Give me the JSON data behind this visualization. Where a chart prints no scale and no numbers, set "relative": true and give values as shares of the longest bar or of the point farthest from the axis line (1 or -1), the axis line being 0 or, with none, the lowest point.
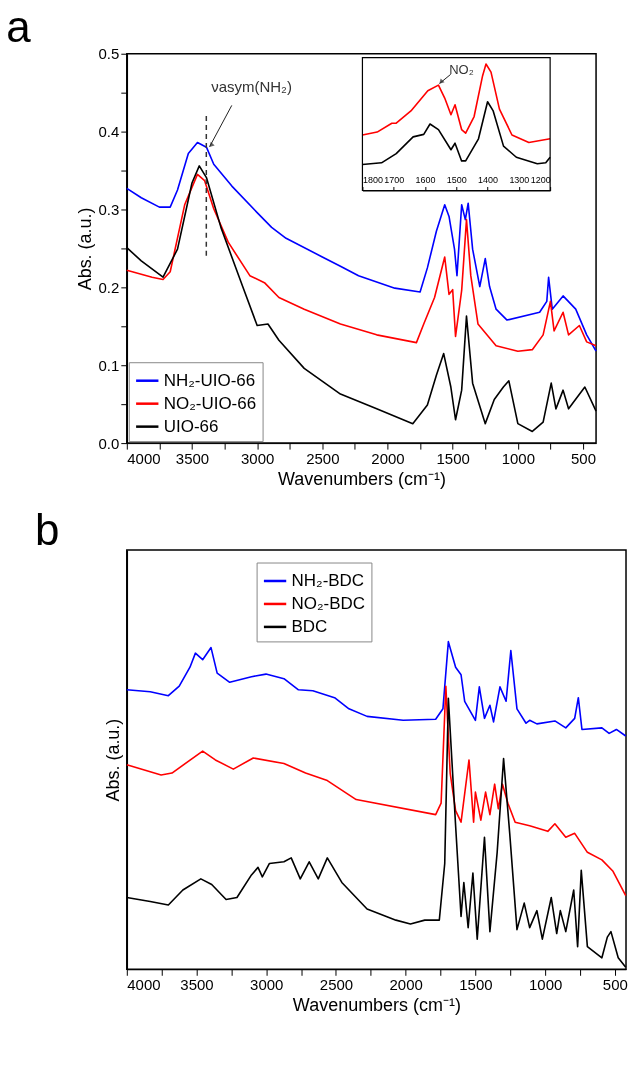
{
  "chart_data": [
    {
      "type": "line",
      "title": "a",
      "xlabel": "Wavenumbers (cm⁻¹)",
      "ylabel": "Abs. (a.u.)",
      "xlim": [
        4000,
        400
      ],
      "ylim": [
        0,
        0.5
      ],
      "xticks": [
        4000,
        {
          "value": 3750,
          "label": null
        },
        3500,
        {
          "value": 3250,
          "label": null
        },
        3000,
        {
          "value": 2750,
          "label": null
        },
        2500,
        {
          "value": 2250,
          "label": null
        },
        2000,
        {
          "value": 1750,
          "label": null
        },
        1500,
        {
          "value": 1250,
          "label": null
        },
        1000,
        {
          "value": 750,
          "label": null
        },
        500
      ],
      "yticks": [
        {
          "value": 0,
          "label": "0.0"
        },
        {
          "value": 0.05,
          "label": null
        },
        0.1,
        {
          "value": 0.15,
          "label": null
        },
        0.2,
        {
          "value": 0.25,
          "label": null
        },
        0.3,
        {
          "value": 0.35,
          "label": null
        },
        0.4,
        {
          "value": 0.45,
          "label": null
        },
        0.5
      ],
      "grid": false,
      "legend": "bottom left",
      "ref_lines": [
        {
          "axis": "x",
          "value": 3390,
          "line_style": "dashed",
          "color": "#333333"
        }
      ],
      "annotations": [
        {
          "text": "νasym(NH₂)",
          "x": 3380,
          "y": 0.378
        }
      ],
      "series": [
        {
          "name": "NH₂-UIO-66",
          "color": "#0000ff",
          "x": [
            4000,
            3889,
            3750,
            3667,
            3611,
            3528,
            3458,
            3389,
            3333,
            3194,
            3000,
            2889,
            2778,
            2500,
            2361,
            2222,
            1944,
            1750,
            1694,
            1625,
            1561,
            1528,
            1486,
            1467,
            1431,
            1403,
            1381,
            1347,
            1292,
            1250,
            1217,
            1167,
            1083,
            833,
            778,
            764,
            736,
            653,
            556,
            472,
            400
          ],
          "values": [
            0.327,
            0.315,
            0.303,
            0.303,
            0.325,
            0.372,
            0.386,
            0.38,
            0.358,
            0.33,
            0.296,
            0.277,
            0.263,
            0.239,
            0.227,
            0.215,
            0.199,
            0.194,
            0.225,
            0.272,
            0.306,
            0.291,
            0.249,
            0.215,
            0.306,
            0.287,
            0.308,
            0.249,
            0.201,
            0.237,
            0.201,
            0.172,
            0.158,
            0.168,
            0.182,
            0.213,
            0.172,
            0.189,
            0.172,
            0.139,
            0.118
          ]
        },
        {
          "name": "NO₂-UIO-66",
          "color": "#ff0000",
          "x": [
            4000,
            3806,
            3722,
            3667,
            3556,
            3458,
            3403,
            3333,
            3222,
            3056,
            2944,
            2833,
            2639,
            2361,
            2083,
            1778,
            1722,
            1639,
            1561,
            1528,
            1500,
            1478,
            1431,
            1394,
            1361,
            1306,
            1167,
            1000,
            889,
            806,
            750,
            722,
            653,
            611,
            528,
            472,
            400
          ],
          "values": [
            0.222,
            0.213,
            0.21,
            0.22,
            0.306,
            0.345,
            0.337,
            0.301,
            0.258,
            0.215,
            0.206,
            0.187,
            0.172,
            0.153,
            0.139,
            0.129,
            0.153,
            0.187,
            0.239,
            0.191,
            0.197,
            0.137,
            0.196,
            0.287,
            0.215,
            0.153,
            0.125,
            0.118,
            0.12,
            0.139,
            0.182,
            0.144,
            0.168,
            0.139,
            0.151,
            0.13,
            0.125
          ]
        },
        {
          "name": "UIO-66",
          "color": "#000000",
          "x": [
            4000,
            3889,
            3722,
            3611,
            3500,
            3444,
            3389,
            3278,
            3111,
            3000,
            2917,
            2833,
            2639,
            2361,
            2083,
            1806,
            1694,
            1625,
            1569,
            1514,
            1478,
            1431,
            1394,
            1347,
            1250,
            1181,
            1111,
            1069,
            1000,
            889,
            806,
            744,
            708,
            653,
            611,
            486,
            400
          ],
          "values": [
            0.251,
            0.234,
            0.213,
            0.249,
            0.334,
            0.356,
            0.341,
            0.277,
            0.201,
            0.151,
            0.153,
            0.132,
            0.096,
            0.063,
            0.044,
            0.025,
            0.049,
            0.087,
            0.115,
            0.072,
            0.03,
            0.068,
            0.163,
            0.077,
            0.025,
            0.056,
            0.072,
            0.08,
            0.025,
            0.015,
            0.027,
            0.077,
            0.044,
            0.068,
            0.044,
            0.072,
            0.041
          ]
        }
      ]
    },
    {
      "type": "line",
      "relative": true,
      "xlim": [
        1800,
        1200
      ],
      "xticks": [
        1800,
        1700,
        1600,
        1500,
        1400,
        1300,
        1200
      ],
      "grid": false,
      "annotations": [
        {
          "text": "NO₂",
          "x": 1560,
          "y": 0.83
        }
      ],
      "series": [
        {
          "color": "#ff0000",
          "x": [
            1800,
            1753,
            1706,
            1692,
            1645,
            1591,
            1557,
            1537,
            1517,
            1504,
            1483,
            1470,
            1443,
            1416,
            1405,
            1389,
            1362,
            1322,
            1268,
            1200
          ],
          "values": [
            0.439,
            0.462,
            0.532,
            0.532,
            0.629,
            0.789,
            0.833,
            0.731,
            0.599,
            0.678,
            0.482,
            0.453,
            0.585,
            0.906,
            1.0,
            0.936,
            0.643,
            0.439,
            0.38,
            0.409
          ]
        },
        {
          "color": "#000000",
          "x": [
            1800,
            1739,
            1692,
            1638,
            1604,
            1584,
            1557,
            1517,
            1504,
            1483,
            1470,
            1429,
            1400,
            1382,
            1349,
            1308,
            1241,
            1214,
            1200
          ],
          "values": [
            0.205,
            0.219,
            0.292,
            0.424,
            0.444,
            0.526,
            0.482,
            0.322,
            0.374,
            0.234,
            0.234,
            0.409,
            0.702,
            0.629,
            0.351,
            0.263,
            0.211,
            0.219,
            0.263
          ]
        }
      ]
    },
    {
      "type": "line",
      "title": "b",
      "relative": true,
      "xlabel": "Wavenumbers (cm⁻¹)",
      "ylabel": "Abs. (a.u.)",
      "xlim": [
        4000,
        420
      ],
      "xticks": [
        4000,
        {
          "value": 3750,
          "label": null
        },
        3500,
        {
          "value": 3250,
          "label": null
        },
        3000,
        {
          "value": 2750,
          "label": null
        },
        2500,
        {
          "value": 2250,
          "label": null
        },
        2000,
        {
          "value": 1750,
          "label": null
        },
        1500,
        {
          "value": 1250,
          "label": null
        },
        1000,
        {
          "value": 750,
          "label": null
        },
        500
      ],
      "grid": false,
      "legend": "top",
      "series": [
        {
          "name": "NH₂-BDC",
          "color": "#0000ff",
          "x": [
            4000,
            3832,
            3702,
            3624,
            3547,
            3508,
            3456,
            3396,
            3352,
            3262,
            3106,
            3002,
            2873,
            2769,
            2666,
            2510,
            2407,
            2277,
            2018,
            1785,
            1733,
            1694,
            1642,
            1603,
            1577,
            1500,
            1472,
            1435,
            1396,
            1370,
            1324,
            1280,
            1246,
            1202,
            1137,
            1111,
            1059,
            930,
            852,
            788,
            762,
            736,
            593,
            541,
            489,
            422
          ],
          "values": [
            0.853,
            0.847,
            0.835,
            0.864,
            0.922,
            0.965,
            0.945,
            0.982,
            0.904,
            0.876,
            0.893,
            0.901,
            0.887,
            0.853,
            0.85,
            0.829,
            0.795,
            0.772,
            0.76,
            0.763,
            0.795,
            1.0,
            0.922,
            0.899,
            0.818,
            0.76,
            0.862,
            0.766,
            0.806,
            0.755,
            0.862,
            0.818,
            0.973,
            0.795,
            0.751,
            0.76,
            0.749,
            0.758,
            0.737,
            0.766,
            0.829,
            0.732,
            0.737,
            0.72,
            0.732,
            0.712
          ]
        },
        {
          "name": "NO₂-BDC",
          "color": "#ff0000",
          "x": [
            4000,
            3754,
            3676,
            3456,
            3365,
            3236,
            3093,
            2873,
            2718,
            2562,
            2355,
            1785,
            1746,
            1712,
            1681,
            1642,
            1603,
            1546,
            1513,
            1500,
            1461,
            1427,
            1396,
            1362,
            1336,
            1306,
            1267,
            1215,
            1111,
            981,
            930,
            852,
            788,
            697,
            593,
            515,
            422
          ],
          "values": [
            0.624,
            0.593,
            0.599,
            0.666,
            0.639,
            0.611,
            0.645,
            0.628,
            0.599,
            0.576,
            0.518,
            0.472,
            0.507,
            0.864,
            0.599,
            0.484,
            0.449,
            0.639,
            0.449,
            0.541,
            0.455,
            0.541,
            0.472,
            0.565,
            0.49,
            0.565,
            0.507,
            0.449,
            0.438,
            0.421,
            0.444,
            0.403,
            0.415,
            0.357,
            0.334,
            0.3,
            0.225
          ]
        },
        {
          "name": "BDC",
          "color": "#000000",
          "x": [
            4000,
            3832,
            3702,
            3598,
            3469,
            3391,
            3288,
            3210,
            3106,
            3059,
            3028,
            2977,
            2873,
            2821,
            2756,
            2692,
            2627,
            2562,
            2458,
            2277,
            2070,
            1966,
            1863,
            1759,
            1720,
            1694,
            1642,
            1603,
            1583,
            1552,
            1518,
            1487,
            1435,
            1396,
            1344,
            1298,
            1254,
            1202,
            1150,
            1111,
            1059,
            1020,
            956,
            917,
            891,
            852,
            795,
            767,
            741,
            697,
            593,
            554,
            528,
            476,
            422
          ],
          "values": [
            0.219,
            0.207,
            0.196,
            0.242,
            0.276,
            0.259,
            0.213,
            0.219,
            0.288,
            0.311,
            0.282,
            0.323,
            0.328,
            0.34,
            0.276,
            0.328,
            0.276,
            0.34,
            0.265,
            0.184,
            0.15,
            0.138,
            0.15,
            0.15,
            0.323,
            0.827,
            0.438,
            0.161,
            0.265,
            0.127,
            0.294,
            0.092,
            0.403,
            0.115,
            0.357,
            0.643,
            0.415,
            0.121,
            0.202,
            0.127,
            0.179,
            0.092,
            0.219,
            0.109,
            0.179,
            0.115,
            0.242,
            0.069,
            0.302,
            0.069,
            0.035,
            0.098,
            0.115,
            0.035,
            0.006
          ]
        }
      ]
    }
  ]
}
